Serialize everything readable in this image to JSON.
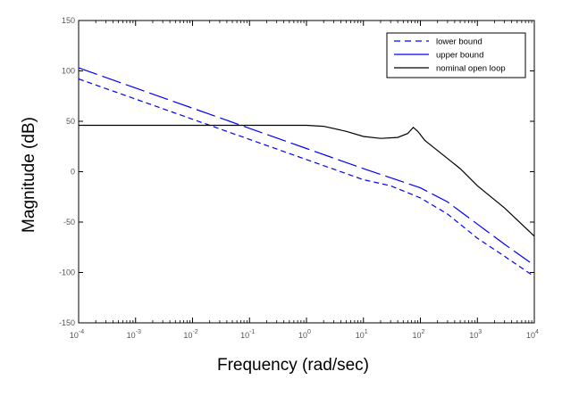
{
  "chart_data": {
    "type": "line",
    "title": "",
    "xlabel": "Frequency (rad/sec)",
    "ylabel": "Magnitude (dB)",
    "xscale": "log",
    "xlim": [
      0.0001,
      10000
    ],
    "ylim": [
      -150,
      150
    ],
    "yticks": [
      150,
      100,
      50,
      0,
      -50,
      -100,
      -150
    ],
    "xticks": [
      {
        "base": "10",
        "exp": "-4"
      },
      {
        "base": "10",
        "exp": "-3"
      },
      {
        "base": "10",
        "exp": "-2"
      },
      {
        "base": "10",
        "exp": "-1"
      },
      {
        "base": "10",
        "exp": "0"
      },
      {
        "base": "10",
        "exp": "1"
      },
      {
        "base": "10",
        "exp": "2"
      },
      {
        "base": "10",
        "exp": "3"
      },
      {
        "base": "10",
        "exp": "4"
      }
    ],
    "grid": false,
    "legend_position": "top-right",
    "series": [
      {
        "name": "lower bound",
        "color": "#0000ff",
        "style": "dashed",
        "x": [
          0.0001,
          0.001,
          0.01,
          0.1,
          1,
          10,
          30,
          100,
          300,
          1000,
          3000,
          10000
        ],
        "y": [
          92,
          72,
          52,
          32,
          12,
          -8,
          -14,
          -26,
          -42,
          -66,
          -84,
          -104
        ]
      },
      {
        "name": "upper bound",
        "color": "#0000ff",
        "style": "longdash",
        "x": [
          0.0001,
          0.001,
          0.01,
          0.1,
          1,
          10,
          30,
          100,
          300,
          1000,
          3000,
          10000
        ],
        "y": [
          103,
          83,
          63,
          43,
          23,
          3,
          -6,
          -16,
          -30,
          -52,
          -72,
          -93
        ]
      },
      {
        "name": "nominal open loop",
        "color": "#000000",
        "style": "solid",
        "x": [
          0.0001,
          0.001,
          0.01,
          0.1,
          1,
          2,
          5,
          10,
          20,
          40,
          60,
          75,
          90,
          120,
          200,
          500,
          1000,
          3000,
          10000
        ],
        "y": [
          46,
          46,
          46,
          46,
          46,
          45,
          40,
          35,
          33,
          34,
          38,
          44,
          40,
          31,
          21,
          3,
          -14,
          -36,
          -64
        ]
      }
    ]
  }
}
